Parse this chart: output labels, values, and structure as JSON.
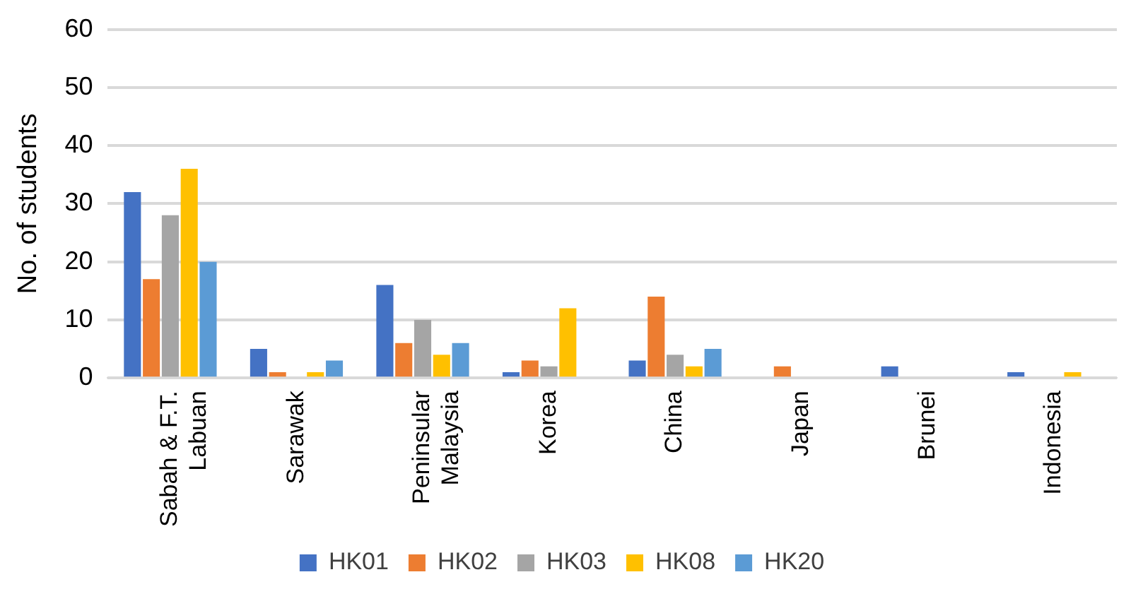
{
  "chart_data": {
    "type": "bar",
    "ylabel": "No. of students",
    "categories": [
      "Sabah & F.T. Labuan",
      "Sarawak",
      "Peninsular Malaysia",
      "Korea",
      "China",
      "Japan",
      "Brunei",
      "Indonesia"
    ],
    "series": [
      {
        "name": "HK01",
        "color": "#4472c4",
        "values": [
          32,
          5,
          16,
          1,
          3,
          0,
          2,
          1
        ]
      },
      {
        "name": "HK02",
        "color": "#ed7d31",
        "values": [
          17,
          1,
          6,
          3,
          14,
          2,
          0,
          0
        ]
      },
      {
        "name": "HK03",
        "color": "#a5a5a5",
        "values": [
          28,
          0,
          10,
          2,
          4,
          0,
          0,
          0
        ]
      },
      {
        "name": "HK08",
        "color": "#ffc000",
        "values": [
          36,
          1,
          4,
          12,
          2,
          0,
          0,
          1
        ]
      },
      {
        "name": "HK20",
        "color": "#5b9bd5",
        "values": [
          20,
          3,
          6,
          0,
          5,
          0,
          0,
          0
        ]
      }
    ],
    "ylim": [
      0,
      60
    ],
    "yticks": [
      0,
      10,
      20,
      30,
      40,
      50,
      60
    ],
    "grid": "y",
    "legend": "bottom"
  }
}
